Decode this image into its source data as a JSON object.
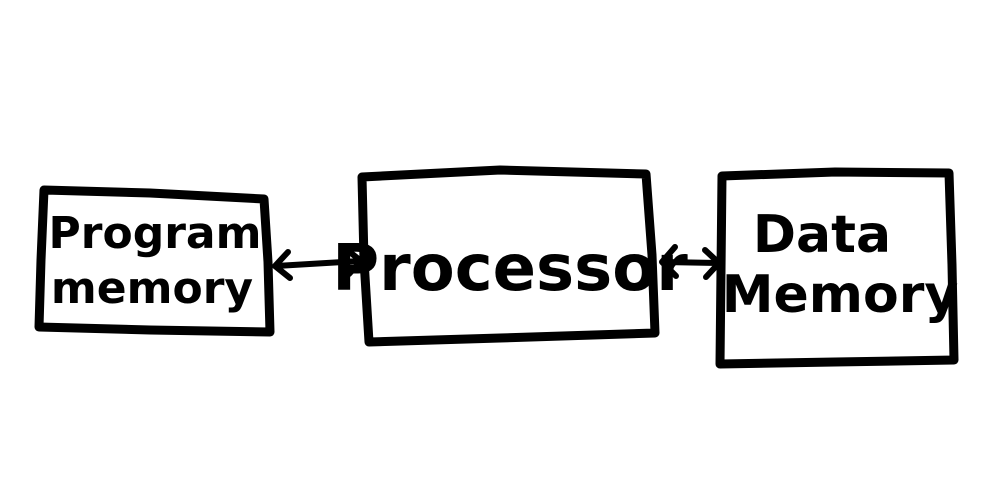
{
  "blocks": {
    "program_memory": {
      "line1": "Program",
      "line2": "memory"
    },
    "processor": {
      "label": "Processor"
    },
    "data_memory": {
      "line1": "Data",
      "line2": "Memory"
    }
  },
  "colors": {
    "stroke": "#000000",
    "background": "#ffffff"
  }
}
